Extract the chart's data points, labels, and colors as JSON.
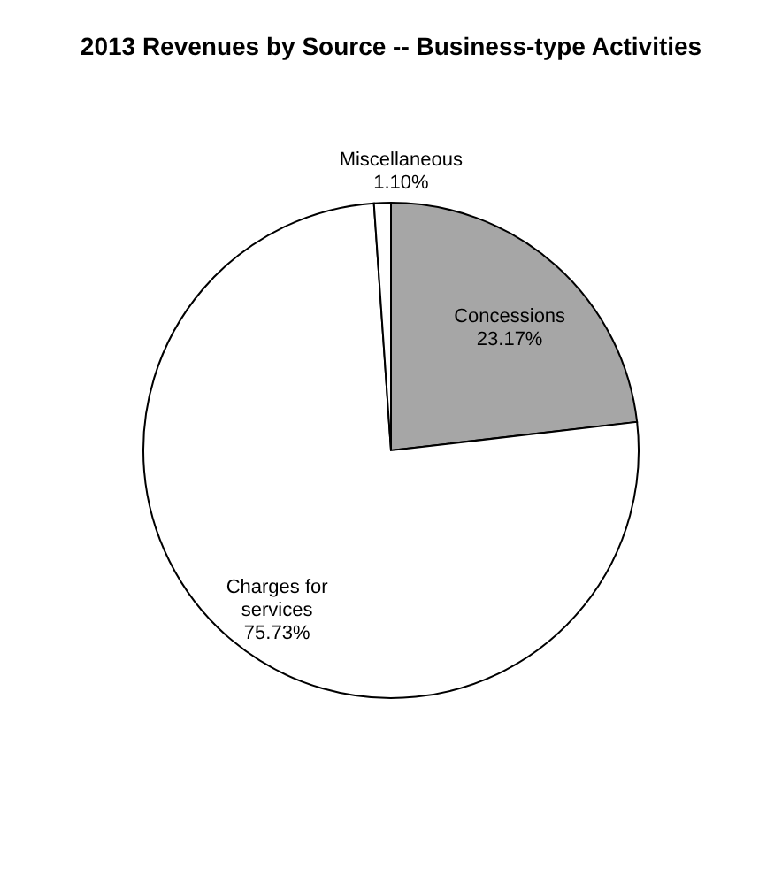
{
  "chart_data": {
    "type": "pie",
    "title": "2013 Revenues by Source -- Business-type Activities",
    "categories": [
      "Concessions",
      "Charges for services",
      "Miscellaneous"
    ],
    "values": [
      23.17,
      75.73,
      1.1
    ],
    "value_labels": [
      "23.17%",
      "75.73%",
      "1.10%"
    ],
    "colors": [
      "#a6a6a6",
      "#ffffff",
      "#ffffff"
    ]
  }
}
